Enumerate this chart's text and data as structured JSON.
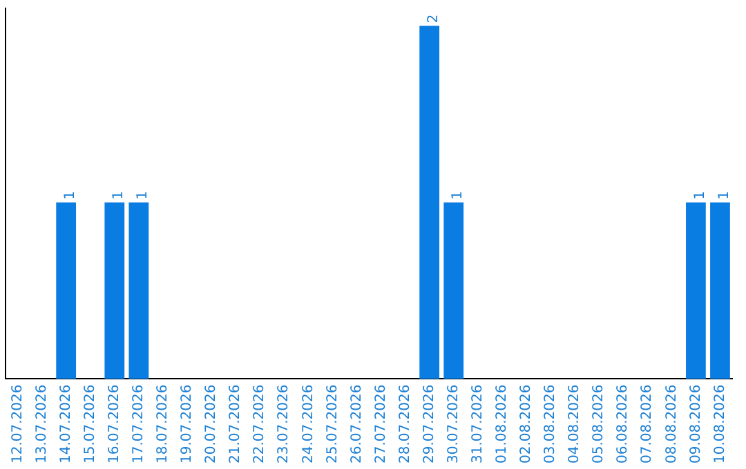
{
  "chart_data": {
    "type": "bar",
    "categories": [
      "12.07.2026",
      "13.07.2026",
      "14.07.2026",
      "15.07.2026",
      "16.07.2026",
      "17.07.2026",
      "18.07.2026",
      "19.07.2026",
      "20.07.2026",
      "21.07.2026",
      "22.07.2026",
      "23.07.2026",
      "24.07.2026",
      "25.07.2026",
      "26.07.2026",
      "27.07.2026",
      "28.07.2026",
      "29.07.2026",
      "30.07.2026",
      "31.07.2026",
      "01.08.2026",
      "02.08.2026",
      "03.08.2026",
      "04.08.2026",
      "05.08.2026",
      "06.08.2026",
      "07.08.2026",
      "08.08.2026",
      "09.08.2026",
      "10.08.2026"
    ],
    "values": [
      0,
      0,
      1,
      0,
      1,
      1,
      0,
      0,
      0,
      0,
      0,
      0,
      0,
      0,
      0,
      0,
      0,
      2,
      1,
      0,
      0,
      0,
      0,
      0,
      0,
      0,
      0,
      0,
      1,
      1
    ],
    "color": "#0a7de3",
    "ylim": [
      0,
      2.1
    ],
    "value_labels": [
      null,
      null,
      "1",
      null,
      "1",
      "1",
      null,
      null,
      null,
      null,
      null,
      null,
      null,
      null,
      null,
      null,
      null,
      "2",
      "1",
      null,
      null,
      null,
      null,
      null,
      null,
      null,
      null,
      null,
      "1",
      "1"
    ],
    "grid": false,
    "legend": false,
    "tick_labels": "x"
  }
}
